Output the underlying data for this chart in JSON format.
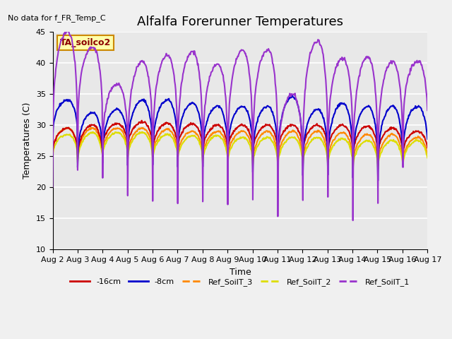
{
  "title": "Alfalfa Forerunner Temperatures",
  "no_data_text": "No data for f_FR_Temp_C",
  "legend_box_label": "TA_soilco2",
  "ylabel": "Temperatures (C)",
  "xlabel": "Time",
  "ylim": [
    10,
    45
  ],
  "xtick_labels": [
    "Aug 2",
    "Aug 3",
    "Aug 4",
    "Aug 5",
    "Aug 6",
    "Aug 7",
    "Aug 8",
    "Aug 9",
    "Aug 10",
    "Aug 11",
    "Aug 12",
    "Aug 13",
    "Aug 14",
    "Aug 15",
    "Aug 16",
    "Aug 17"
  ],
  "series_colors": {
    "minus16cm": "#cc0000",
    "minus8cm": "#0000cc",
    "ref3": "#ff8800",
    "ref2": "#dddd00",
    "ref1": "#9933cc"
  },
  "series_labels": [
    "-16cm",
    "-8cm",
    "Ref_SoilT_3",
    "Ref_SoilT_2",
    "Ref_SoilT_1"
  ],
  "ytick_major": [
    10,
    15,
    20,
    25,
    30,
    35,
    40,
    45
  ],
  "fig_bg": "#f0f0f0",
  "plot_bg": "#e8e8e8",
  "grid_color": "#ffffff",
  "title_fontsize": 13,
  "axis_fontsize": 9,
  "tick_fontsize": 8
}
